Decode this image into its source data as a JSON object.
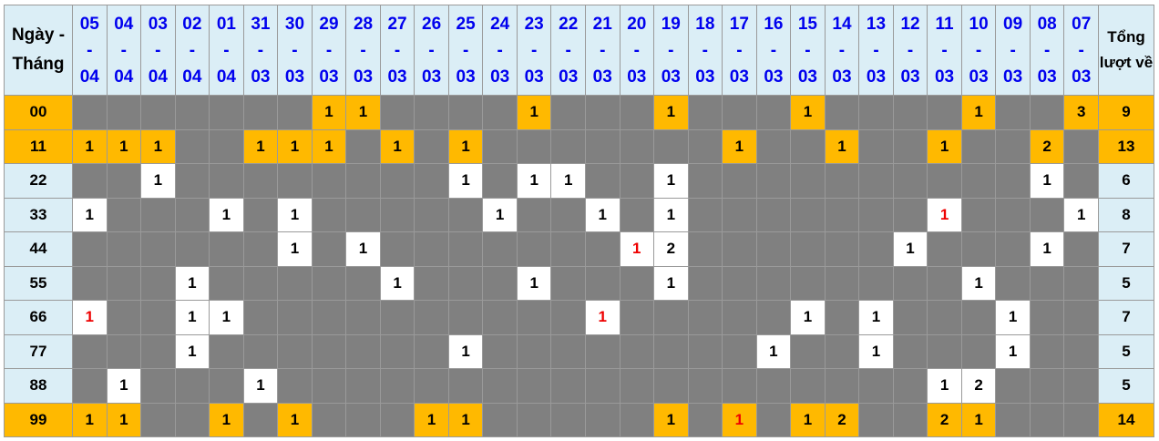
{
  "header": {
    "first": "Ngày - Tháng",
    "total": "Tổng lượt về",
    "dates": [
      {
        "d": "05",
        "m": "04"
      },
      {
        "d": "04",
        "m": "04"
      },
      {
        "d": "03",
        "m": "04"
      },
      {
        "d": "02",
        "m": "04"
      },
      {
        "d": "01",
        "m": "04"
      },
      {
        "d": "31",
        "m": "03"
      },
      {
        "d": "30",
        "m": "03"
      },
      {
        "d": "29",
        "m": "03"
      },
      {
        "d": "28",
        "m": "03"
      },
      {
        "d": "27",
        "m": "03"
      },
      {
        "d": "26",
        "m": "03"
      },
      {
        "d": "25",
        "m": "03"
      },
      {
        "d": "24",
        "m": "03"
      },
      {
        "d": "23",
        "m": "03"
      },
      {
        "d": "22",
        "m": "03"
      },
      {
        "d": "21",
        "m": "03"
      },
      {
        "d": "20",
        "m": "03"
      },
      {
        "d": "19",
        "m": "03"
      },
      {
        "d": "18",
        "m": "03"
      },
      {
        "d": "17",
        "m": "03"
      },
      {
        "d": "16",
        "m": "03"
      },
      {
        "d": "15",
        "m": "03"
      },
      {
        "d": "14",
        "m": "03"
      },
      {
        "d": "13",
        "m": "03"
      },
      {
        "d": "12",
        "m": "03"
      },
      {
        "d": "11",
        "m": "03"
      },
      {
        "d": "10",
        "m": "03"
      },
      {
        "d": "09",
        "m": "03"
      },
      {
        "d": "08",
        "m": "03"
      },
      {
        "d": "07",
        "m": "03"
      }
    ],
    "sep": "-"
  },
  "colors": {
    "highlight": "#ffb900",
    "empty": "#808080",
    "header_bg": "#dbeef6",
    "date_text": "#0000ee",
    "red_text": "#ee0000"
  },
  "rows": [
    {
      "label": "00",
      "highlight": true,
      "total": "9",
      "values": [
        0,
        0,
        0,
        0,
        0,
        0,
        0,
        1,
        1,
        0,
        0,
        0,
        0,
        1,
        0,
        0,
        0,
        1,
        0,
        0,
        0,
        1,
        0,
        0,
        0,
        0,
        1,
        0,
        0,
        3
      ],
      "red": []
    },
    {
      "label": "11",
      "highlight": true,
      "total": "13",
      "values": [
        1,
        1,
        1,
        0,
        0,
        1,
        1,
        1,
        0,
        1,
        0,
        1,
        0,
        0,
        0,
        0,
        0,
        0,
        0,
        1,
        0,
        0,
        1,
        0,
        0,
        1,
        0,
        0,
        2,
        0
      ],
      "red": []
    },
    {
      "label": "22",
      "highlight": false,
      "total": "6",
      "values": [
        0,
        0,
        1,
        0,
        0,
        0,
        0,
        0,
        0,
        0,
        0,
        1,
        0,
        1,
        1,
        0,
        0,
        1,
        0,
        0,
        0,
        0,
        0,
        0,
        0,
        0,
        0,
        0,
        1,
        0
      ],
      "red": []
    },
    {
      "label": "33",
      "highlight": false,
      "total": "8",
      "values": [
        1,
        0,
        0,
        0,
        1,
        0,
        1,
        0,
        0,
        0,
        0,
        0,
        1,
        0,
        0,
        1,
        0,
        1,
        0,
        0,
        0,
        0,
        0,
        0,
        0,
        1,
        0,
        0,
        0,
        1
      ],
      "red": [
        25
      ]
    },
    {
      "label": "44",
      "highlight": false,
      "total": "7",
      "values": [
        0,
        0,
        0,
        0,
        0,
        0,
        1,
        0,
        1,
        0,
        0,
        0,
        0,
        0,
        0,
        0,
        1,
        2,
        0,
        0,
        0,
        0,
        0,
        0,
        1,
        0,
        0,
        0,
        1,
        0
      ],
      "red": [
        16
      ]
    },
    {
      "label": "55",
      "highlight": false,
      "total": "5",
      "values": [
        0,
        0,
        0,
        1,
        0,
        0,
        0,
        0,
        0,
        1,
        0,
        0,
        0,
        1,
        0,
        0,
        0,
        1,
        0,
        0,
        0,
        0,
        0,
        0,
        0,
        0,
        1,
        0,
        0,
        0
      ],
      "red": []
    },
    {
      "label": "66",
      "highlight": false,
      "total": "7",
      "values": [
        1,
        0,
        0,
        1,
        1,
        0,
        0,
        0,
        0,
        0,
        0,
        0,
        0,
        0,
        0,
        1,
        0,
        0,
        0,
        0,
        0,
        1,
        0,
        1,
        0,
        0,
        0,
        1,
        0,
        0
      ],
      "red": [
        0,
        15
      ]
    },
    {
      "label": "77",
      "highlight": false,
      "total": "5",
      "values": [
        0,
        0,
        0,
        1,
        0,
        0,
        0,
        0,
        0,
        0,
        0,
        1,
        0,
        0,
        0,
        0,
        0,
        0,
        0,
        0,
        1,
        0,
        0,
        1,
        0,
        0,
        0,
        1,
        0,
        0
      ],
      "red": []
    },
    {
      "label": "88",
      "highlight": false,
      "total": "5",
      "values": [
        0,
        1,
        0,
        0,
        0,
        1,
        0,
        0,
        0,
        0,
        0,
        0,
        0,
        0,
        0,
        0,
        0,
        0,
        0,
        0,
        0,
        0,
        0,
        0,
        0,
        1,
        2,
        0,
        0,
        0
      ],
      "red": []
    },
    {
      "label": "99",
      "highlight": true,
      "total": "14",
      "values": [
        1,
        1,
        0,
        0,
        1,
        0,
        1,
        0,
        0,
        0,
        1,
        1,
        0,
        0,
        0,
        0,
        0,
        1,
        0,
        1,
        0,
        1,
        2,
        0,
        0,
        2,
        1,
        0,
        0,
        0
      ],
      "red": [
        19
      ]
    }
  ]
}
